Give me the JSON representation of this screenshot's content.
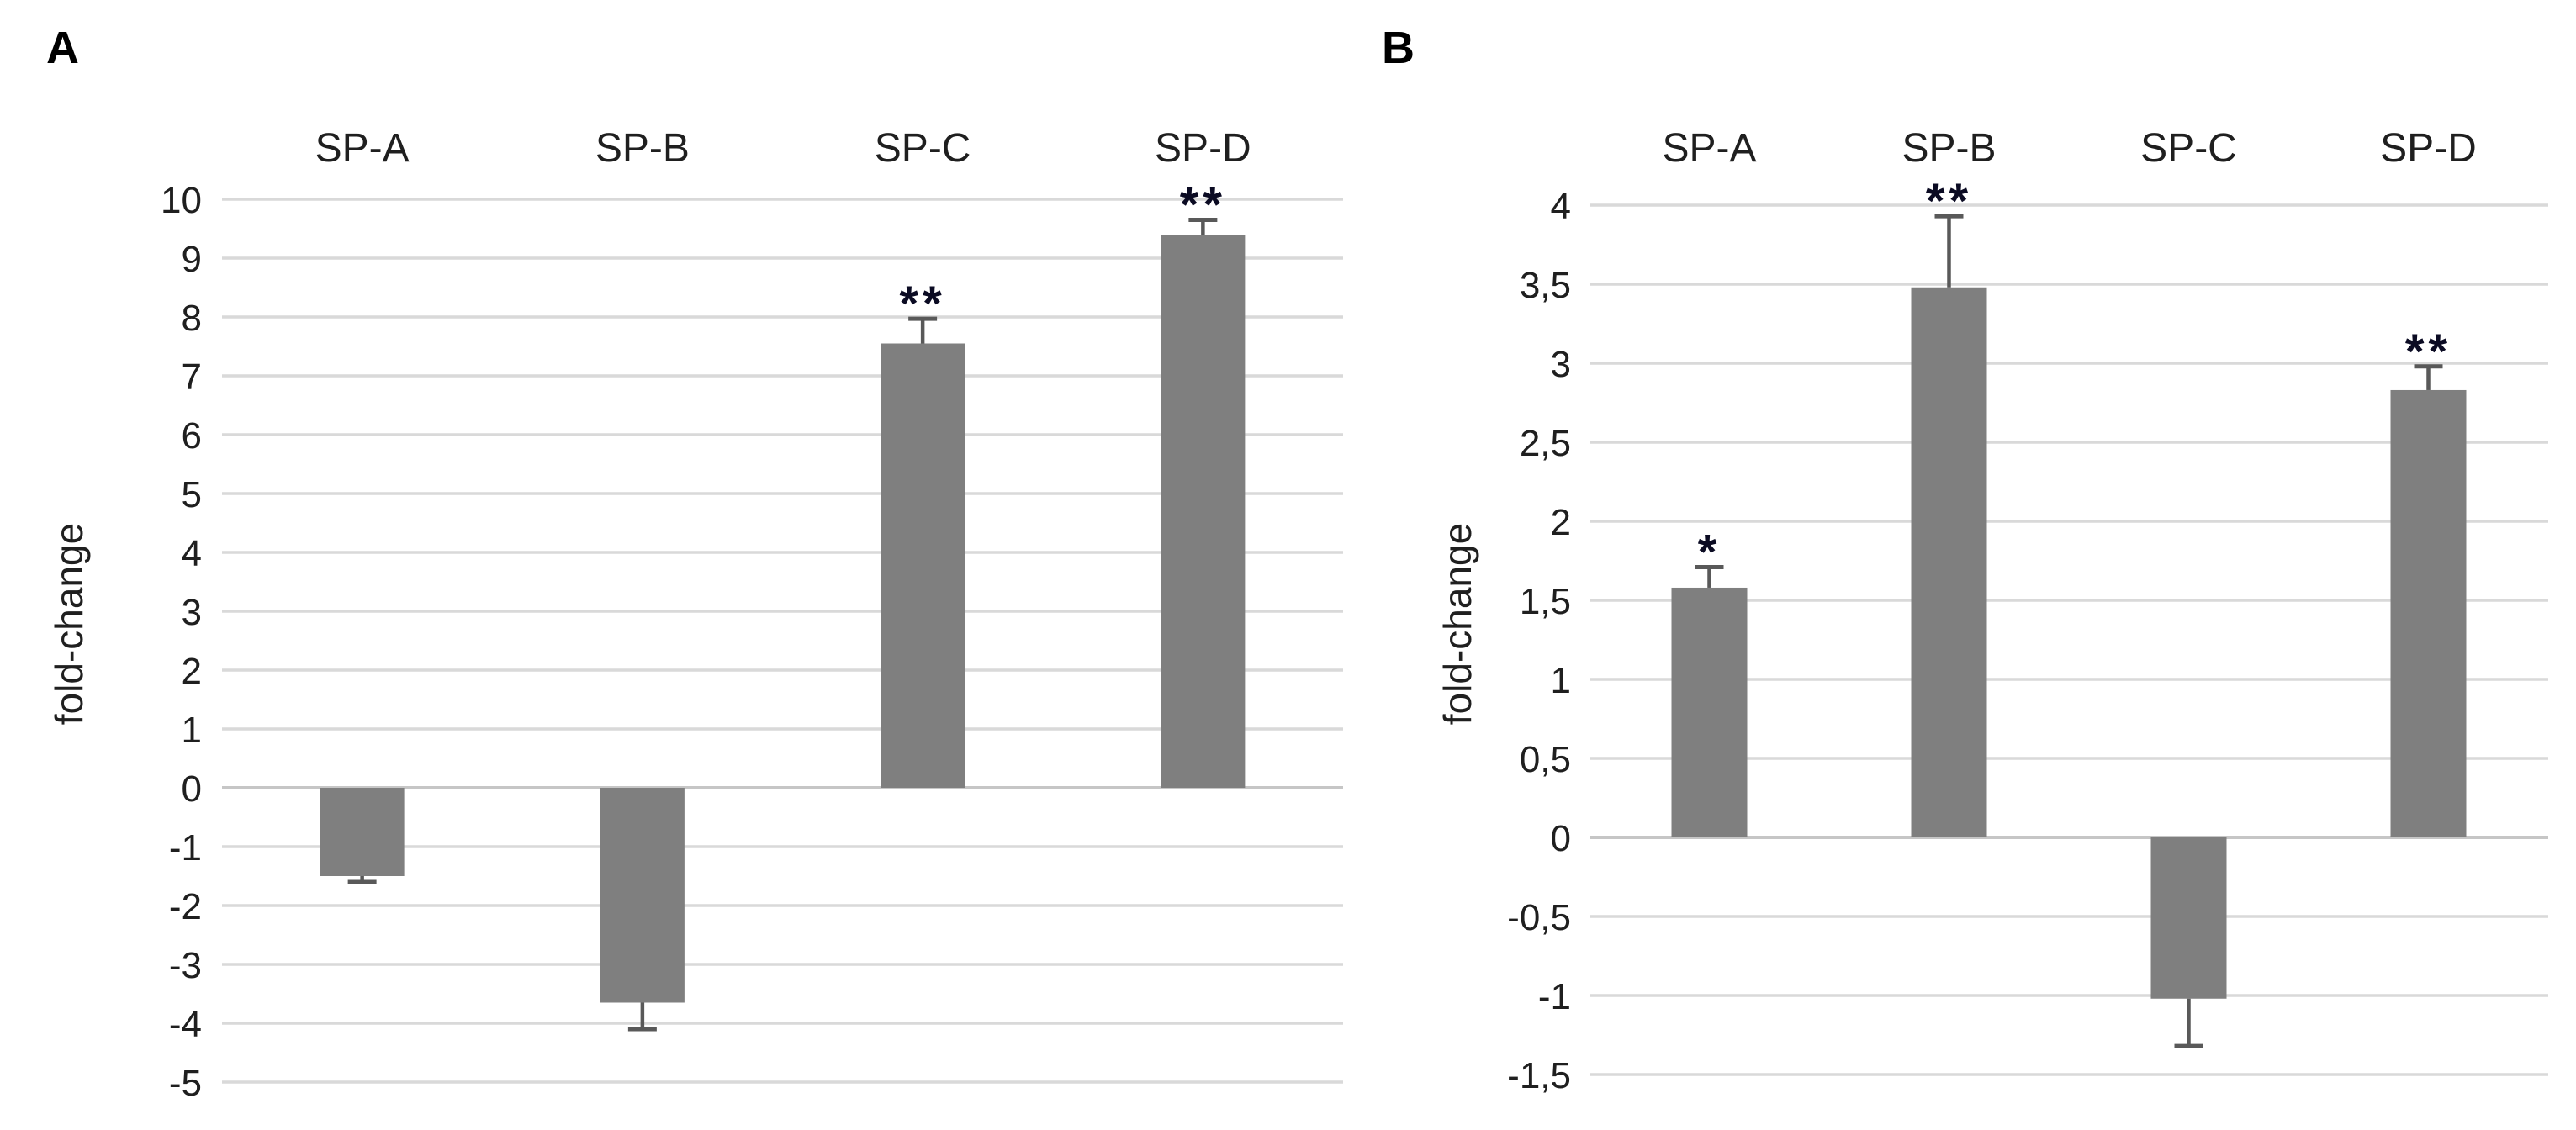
{
  "figure": {
    "background": "#ffffff",
    "bar_color": "#7f7f7f",
    "error_bar_color": "#595959",
    "gridline_color": "#d9d9d9",
    "zero_axis_color": "#c6c6c6",
    "text_color": "#1f1f1f",
    "significance_color": "#0b0b23"
  },
  "chart_data": [
    {
      "type": "bar",
      "panel_label": "A",
      "ylabel": "fold-change",
      "xlabel": "",
      "categories": [
        "SP-A",
        "SP-B",
        "SP-C",
        "SP-D"
      ],
      "values": [
        -1.5,
        -3.65,
        7.55,
        9.4
      ],
      "errors": [
        0.1,
        0.45,
        0.42,
        0.25
      ],
      "significance": [
        "",
        "",
        "**",
        "**"
      ],
      "ylim": [
        -5,
        10
      ],
      "ytick_step": 1,
      "decimal_comma": false,
      "grid": true,
      "legend": "none"
    },
    {
      "type": "bar",
      "panel_label": "B",
      "ylabel": "fold-change",
      "xlabel": "",
      "categories": [
        "SP-A",
        "SP-B",
        "SP-C",
        "SP-D"
      ],
      "values": [
        1.58,
        3.48,
        -1.02,
        2.83
      ],
      "errors": [
        0.13,
        0.45,
        0.3,
        0.15
      ],
      "significance": [
        "*",
        "**",
        "",
        "**"
      ],
      "ylim": [
        -1.5,
        4
      ],
      "ytick_step": 0.5,
      "decimal_comma": true,
      "grid": true,
      "legend": "none"
    }
  ]
}
